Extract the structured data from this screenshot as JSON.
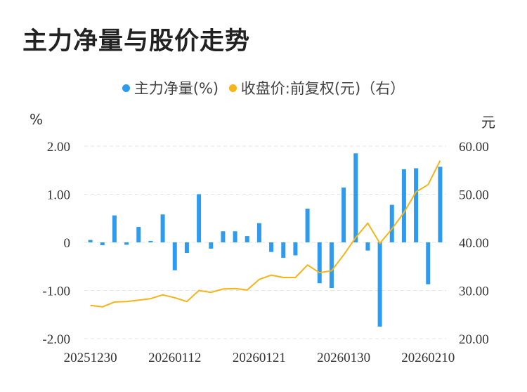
{
  "title": "主力净量与股价走势",
  "legend": {
    "series1": "主力净量(%)",
    "series2": "收盘价:前复权(元)（右）"
  },
  "colors": {
    "bar": "#2E9BEE",
    "line": "#F5B417",
    "grid": "#e6e6e6"
  },
  "chart_data": {
    "type": "bar",
    "left_unit": "%",
    "right_unit": "元",
    "x_tick_labels": [
      "20251230",
      "20260112",
      "20260121",
      "20260130",
      "20260210"
    ],
    "x_tick_indices": [
      0,
      7,
      14,
      21,
      28
    ],
    "y_left": {
      "ticks": [
        "2.00",
        "1.00",
        "0",
        "-1.00",
        "-2.00"
      ],
      "lim": [
        -2,
        2
      ]
    },
    "y_right": {
      "ticks": [
        "60.00",
        "50.00",
        "40.00",
        "30.00",
        "20.00"
      ],
      "lim": [
        20,
        60
      ]
    },
    "series": [
      {
        "name": "主力净量(%)",
        "type": "bar",
        "axis": "left",
        "values": [
          0.05,
          -0.06,
          0.56,
          -0.05,
          0.32,
          0.03,
          0.58,
          -0.58,
          -0.22,
          1.0,
          -0.13,
          0.23,
          0.23,
          0.13,
          0.4,
          -0.2,
          -0.32,
          -0.27,
          0.7,
          -0.85,
          -0.95,
          1.14,
          1.85,
          -0.17,
          -1.75,
          0.78,
          1.52,
          1.54,
          -0.87,
          1.57
        ]
      },
      {
        "name": "收盘价:前复权(元)（右）",
        "type": "line",
        "axis": "right",
        "values": [
          26.9,
          26.6,
          27.6,
          27.7,
          28.0,
          28.3,
          29.1,
          28.5,
          27.7,
          30.0,
          29.6,
          30.3,
          30.4,
          30.1,
          32.3,
          33.2,
          32.7,
          32.7,
          35.3,
          33.7,
          34.1,
          37.4,
          41.0,
          44.0,
          39.8,
          42.8,
          46.2,
          50.5,
          52.0,
          57.0
        ]
      }
    ]
  }
}
